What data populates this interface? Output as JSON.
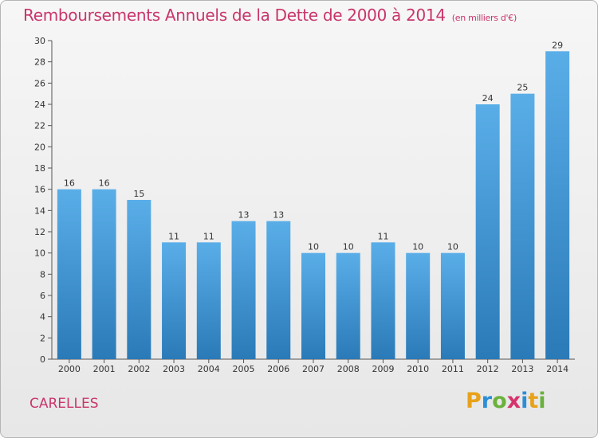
{
  "chart_data": {
    "type": "bar",
    "title": "Remboursements Annuels de la Dette de 2000 à 2014",
    "unit": "(en milliers d'€)",
    "categories": [
      "2000",
      "2001",
      "2002",
      "2003",
      "2004",
      "2005",
      "2006",
      "2007",
      "2008",
      "2009",
      "2010",
      "2011",
      "2012",
      "2013",
      "2014"
    ],
    "values": [
      16,
      16,
      15,
      11,
      11,
      13,
      13,
      10,
      10,
      11,
      10,
      10,
      24,
      25,
      29
    ],
    "ylim": [
      0,
      30
    ],
    "yticks": [
      0,
      2,
      4,
      6,
      8,
      10,
      12,
      14,
      16,
      18,
      20,
      22,
      24,
      26,
      28,
      30
    ],
    "xlabel": "",
    "ylabel": "",
    "grid": false
  },
  "commune": "CARELLES",
  "logo": {
    "letters": [
      "P",
      "r",
      "o",
      "x",
      "i",
      "t",
      "i"
    ],
    "colors": [
      "#e8a21a",
      "#2b8fd6",
      "#6ab23b",
      "#d6336c",
      "#2b8fd6",
      "#e8a21a",
      "#6ab23b"
    ]
  },
  "colors": {
    "bar_top": "#5aaee8",
    "bar_bottom": "#2a7ab8",
    "title": "#c9356b"
  }
}
